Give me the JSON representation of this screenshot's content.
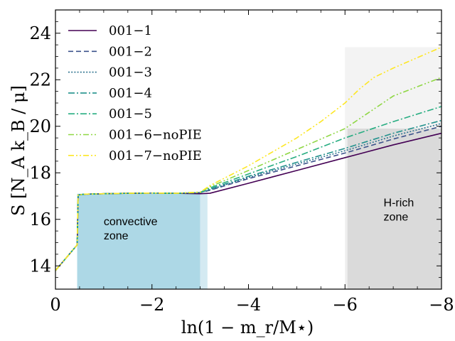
{
  "chart_data": {
    "type": "line",
    "title": "",
    "xlabel": "ln(1 − m_r/M⋆)",
    "ylabel": "S [N_A k_B / μ]",
    "xlim": [
      0,
      -8
    ],
    "ylim": [
      13,
      25
    ],
    "x_ticks": [
      {
        "value": 0,
        "label": "0"
      },
      {
        "value": -2,
        "label": "−2"
      },
      {
        "value": -4,
        "label": "−4"
      },
      {
        "value": -6,
        "label": "−6"
      },
      {
        "value": -8,
        "label": "−8"
      }
    ],
    "y_ticks": [
      {
        "value": 14,
        "label": "14"
      },
      {
        "value": 16,
        "label": "16"
      },
      {
        "value": 18,
        "label": "18"
      },
      {
        "value": 20,
        "label": "20"
      },
      {
        "value": 22,
        "label": "22"
      },
      {
        "value": 24,
        "label": "24"
      }
    ],
    "regions": [
      {
        "name": "convective-zone",
        "label_lines": [
          "convective",
          "zone"
        ],
        "x_range": [
          -0.45,
          -3.0
        ],
        "y_range": [
          13,
          17.1
        ],
        "color": "#add8e6"
      },
      {
        "name": "convective-zone-fringe",
        "label_lines": [],
        "x_range": [
          -3.0,
          -3.15
        ],
        "y_range": [
          13,
          17.1
        ],
        "color": "#d4eaf2"
      },
      {
        "name": "h-rich-zone",
        "label_lines": [
          "H-rich",
          "zone"
        ],
        "x_range": [
          -6.05,
          -8
        ],
        "y_range": [
          13,
          19.9
        ],
        "color": "#dadada"
      },
      {
        "name": "h-rich-zone-fringe",
        "label_lines": [],
        "x_range": [
          -6.0,
          -6.05
        ],
        "y_range": [
          13,
          20.0
        ],
        "color": "#eeeeee"
      },
      {
        "name": "h-rich-zone-upper",
        "label_lines": [],
        "x_range": [
          -6.0,
          -8
        ],
        "y_range": [
          19.9,
          23.4
        ],
        "color": "#f3f3f3"
      }
    ],
    "series": [
      {
        "name": "001−1",
        "color": "#440154",
        "dash": "solid",
        "x": [
          0,
          -0.45,
          -0.47,
          -0.6,
          -1.0,
          -1.5,
          -2.0,
          -2.5,
          -3.0,
          -3.2,
          -4.0,
          -5.0,
          -6.0,
          -7.0,
          -8.0
        ],
        "y": [
          13.8,
          14.9,
          17.05,
          17.08,
          17.1,
          17.12,
          17.13,
          17.12,
          17.1,
          17.12,
          17.55,
          18.1,
          18.65,
          19.2,
          19.7
        ]
      },
      {
        "name": "001−2",
        "color": "#3b528b",
        "dash": "dashed",
        "x": [
          0,
          -0.45,
          -0.47,
          -0.6,
          -1.0,
          -1.5,
          -2.0,
          -2.5,
          -3.0,
          -3.2,
          -4.0,
          -5.0,
          -6.0,
          -7.0,
          -8.0
        ],
        "y": [
          13.8,
          14.9,
          17.05,
          17.08,
          17.1,
          17.12,
          17.13,
          17.12,
          17.15,
          17.25,
          17.75,
          18.3,
          18.85,
          19.45,
          20.0
        ]
      },
      {
        "name": "001−3",
        "color": "#2c728e",
        "dash": "dotted",
        "x": [
          0,
          -0.45,
          -0.47,
          -0.6,
          -1.0,
          -1.5,
          -2.0,
          -2.5,
          -3.0,
          -3.2,
          -4.0,
          -5.0,
          -6.0,
          -7.0,
          -8.0
        ],
        "y": [
          13.8,
          14.9,
          17.05,
          17.08,
          17.1,
          17.12,
          17.13,
          17.12,
          17.15,
          17.27,
          17.8,
          18.38,
          18.95,
          19.58,
          20.12
        ]
      },
      {
        "name": "001−4",
        "color": "#21918c",
        "dash": "dashdot",
        "x": [
          0,
          -0.45,
          -0.47,
          -0.6,
          -1.0,
          -1.5,
          -2.0,
          -2.5,
          -3.0,
          -3.2,
          -4.0,
          -5.0,
          -6.0,
          -7.0,
          -8.0
        ],
        "y": [
          13.8,
          14.9,
          17.05,
          17.08,
          17.1,
          17.12,
          17.13,
          17.12,
          17.15,
          17.3,
          17.85,
          18.45,
          19.05,
          19.7,
          20.25
        ]
      },
      {
        "name": "001−5",
        "color": "#27ad81",
        "dash": "dashdot",
        "x": [
          0,
          -0.45,
          -0.47,
          -0.6,
          -1.0,
          -1.5,
          -2.0,
          -2.5,
          -3.0,
          -3.2,
          -4.0,
          -5.0,
          -6.0,
          -7.0,
          -8.0
        ],
        "y": [
          13.8,
          14.9,
          17.05,
          17.08,
          17.1,
          17.12,
          17.13,
          17.12,
          17.16,
          17.35,
          17.95,
          18.7,
          19.5,
          20.2,
          20.85
        ]
      },
      {
        "name": "001−6−noPIE",
        "color": "#8fd744",
        "dash": "dashdotdot",
        "x": [
          0,
          -0.45,
          -0.47,
          -0.6,
          -1.0,
          -1.5,
          -2.0,
          -2.5,
          -3.0,
          -3.2,
          -4.0,
          -5.0,
          -6.0,
          -6.5,
          -7.0,
          -8.0
        ],
        "y": [
          13.8,
          14.9,
          17.05,
          17.08,
          17.1,
          17.12,
          17.13,
          17.12,
          17.17,
          17.4,
          18.1,
          19.0,
          19.9,
          20.6,
          21.3,
          22.1
        ]
      },
      {
        "name": "001−7−noPIE",
        "color": "#fde725",
        "dash": "dashdotdot",
        "x": [
          0,
          -0.45,
          -0.47,
          -0.6,
          -1.0,
          -1.5,
          -2.0,
          -2.5,
          -3.0,
          -3.2,
          -4.0,
          -5.0,
          -5.5,
          -6.0,
          -6.3,
          -6.6,
          -7.0,
          -8.0
        ],
        "y": [
          13.8,
          14.9,
          17.05,
          17.08,
          17.1,
          17.12,
          17.13,
          17.12,
          17.17,
          17.45,
          18.3,
          19.5,
          20.2,
          21.0,
          21.6,
          22.1,
          22.5,
          23.4
        ]
      }
    ],
    "legend_position": "top-left"
  }
}
